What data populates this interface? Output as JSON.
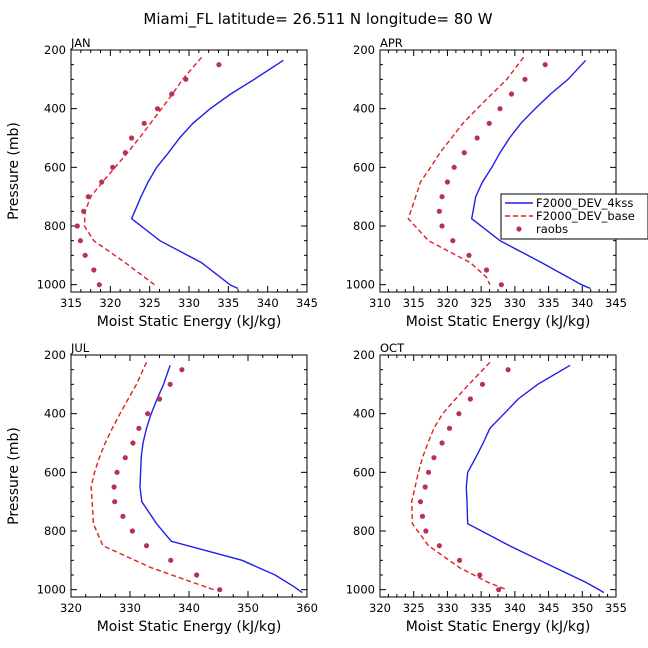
{
  "figure": {
    "title": "Miami_FL  latitude= 26.511 N longitude= 80 W"
  },
  "colors": {
    "blue": "#1f1fe6",
    "red": "#e0201c",
    "dots": "#b8315c",
    "axis": "#000000"
  },
  "chart_data": [
    {
      "type": "line",
      "panel": "JAN",
      "xlabel": "Moist Static Energy (kJ/kg)",
      "ylabel": "Pressure (mb)",
      "xlim": [
        315,
        345
      ],
      "xticks": [
        315,
        320,
        325,
        330,
        335,
        340,
        345
      ],
      "ylim": [
        200,
        1025
      ],
      "yticks": [
        200,
        400,
        600,
        800,
        1000
      ],
      "y_inverted": true,
      "series": [
        {
          "name": "F2000_DEV_4kss",
          "style": "solid",
          "color": "blue",
          "p": [
            235,
            300,
            350,
            400,
            450,
            500,
            550,
            600,
            650,
            700,
            775,
            850,
            925,
            1000,
            1013
          ],
          "x": [
            342,
            338.3,
            335.3,
            332.7,
            330.5,
            328.8,
            327.4,
            325.9,
            324.8,
            323.9,
            322.7,
            326.3,
            331.6,
            335.2,
            336.2
          ]
        },
        {
          "name": "F2000_DEV_base",
          "style": "dashed",
          "color": "red",
          "p": [
            225,
            300,
            350,
            400,
            450,
            500,
            550,
            600,
            650,
            700,
            750,
            800,
            850,
            925,
            1000
          ],
          "x": [
            331.6,
            329.2,
            327.9,
            326.5,
            325.1,
            323.7,
            322.2,
            320.6,
            319.0,
            317.5,
            316.8,
            316.7,
            317.9,
            321.9,
            325.6
          ]
        },
        {
          "name": "raobs",
          "style": "dots",
          "color": "dots",
          "p": [
            250,
            300,
            350,
            400,
            450,
            500,
            550,
            600,
            650,
            700,
            750,
            800,
            850,
            900,
            950,
            1000
          ],
          "x": [
            333.8,
            329.6,
            327.8,
            326.0,
            324.3,
            322.7,
            321.9,
            320.3,
            318.9,
            317.2,
            316.6,
            315.8,
            316.2,
            316.8,
            317.9,
            318.6
          ]
        }
      ]
    },
    {
      "type": "line",
      "panel": "APR",
      "xlabel": "Moist Static Energy (kJ/kg)",
      "ylabel": "",
      "xlim": [
        310,
        345
      ],
      "xticks": [
        310,
        315,
        320,
        325,
        330,
        335,
        340,
        345
      ],
      "ylim": [
        200,
        1025
      ],
      "yticks": [
        200,
        400,
        600,
        800,
        1000
      ],
      "y_inverted": true,
      "series": [
        {
          "name": "F2000_DEV_4kss",
          "style": "solid",
          "color": "blue",
          "p": [
            235,
            300,
            350,
            400,
            450,
            500,
            550,
            600,
            650,
            700,
            775,
            850,
            925,
            1000,
            1013
          ],
          "x": [
            340.5,
            337.9,
            335.3,
            333.0,
            330.9,
            329.2,
            327.8,
            326.6,
            325.2,
            324.2,
            323.6,
            327.8,
            334.0,
            339.9,
            341.2
          ]
        },
        {
          "name": "F2000_DEV_base",
          "style": "dashed",
          "color": "red",
          "p": [
            225,
            300,
            350,
            400,
            450,
            500,
            550,
            600,
            650,
            700,
            775,
            850,
            925,
            975,
            1000
          ],
          "x": [
            331.3,
            328.8,
            326.6,
            324.4,
            322.3,
            320.6,
            318.9,
            317.5,
            316.0,
            315.3,
            314.2,
            317.2,
            323.4,
            325.8,
            326.3
          ]
        },
        {
          "name": "raobs",
          "style": "dots",
          "color": "dots",
          "p": [
            250,
            300,
            350,
            400,
            450,
            500,
            550,
            600,
            650,
            700,
            750,
            800,
            850,
            900,
            950,
            1000
          ],
          "x": [
            334.5,
            331.5,
            329.5,
            327.8,
            326.2,
            324.4,
            322.5,
            321.0,
            320.0,
            319.2,
            318.8,
            319.2,
            320.8,
            323.2,
            325.8,
            328.0
          ]
        }
      ]
    },
    {
      "type": "line",
      "panel": "JUL",
      "xlabel": "Moist Static Energy (kJ/kg)",
      "ylabel": "Pressure (mb)",
      "xlim": [
        320,
        360
      ],
      "xticks": [
        320,
        330,
        340,
        350,
        360
      ],
      "ylim": [
        200,
        1025
      ],
      "yticks": [
        200,
        400,
        600,
        800,
        1000
      ],
      "y_inverted": true,
      "series": [
        {
          "name": "F2000_DEV_4kss",
          "style": "solid",
          "color": "blue",
          "p": [
            235,
            300,
            350,
            400,
            450,
            500,
            550,
            600,
            650,
            700,
            775,
            835,
            900,
            950,
            990,
            1010
          ],
          "x": [
            336.8,
            335.7,
            334.6,
            333.6,
            332.8,
            332.2,
            331.9,
            331.8,
            331.7,
            332.0,
            334.5,
            337.0,
            349.0,
            354.6,
            357.8,
            359.2
          ]
        },
        {
          "name": "F2000_DEV_base",
          "style": "dashed",
          "color": "red",
          "p": [
            225,
            300,
            350,
            400,
            450,
            500,
            550,
            600,
            650,
            700,
            775,
            850,
            925,
            975,
            1000
          ],
          "x": [
            332.8,
            331.1,
            329.7,
            328.3,
            327.0,
            325.8,
            324.8,
            324.0,
            323.4,
            323.6,
            323.8,
            325.4,
            333.6,
            340.6,
            344.2
          ]
        },
        {
          "name": "raobs",
          "style": "dots",
          "color": "dots",
          "p": [
            250,
            300,
            350,
            400,
            450,
            500,
            550,
            600,
            650,
            700,
            750,
            800,
            850,
            900,
            950,
            1000
          ],
          "x": [
            338.8,
            336.8,
            335.0,
            333.0,
            331.5,
            330.5,
            329.2,
            327.8,
            327.3,
            327.4,
            328.8,
            330.4,
            332.8,
            336.9,
            341.3,
            345.2
          ]
        }
      ]
    },
    {
      "type": "line",
      "panel": "OCT",
      "xlabel": "Moist Static Energy (kJ/kg)",
      "ylabel": "",
      "xlim": [
        320,
        355
      ],
      "xticks": [
        320,
        325,
        330,
        335,
        340,
        345,
        350,
        355
      ],
      "ylim": [
        200,
        1025
      ],
      "yticks": [
        200,
        400,
        600,
        800,
        1000
      ],
      "y_inverted": true,
      "series": [
        {
          "name": "F2000_DEV_4kss",
          "style": "solid",
          "color": "blue",
          "p": [
            235,
            300,
            350,
            400,
            450,
            500,
            550,
            600,
            650,
            700,
            775,
            850,
            925,
            975,
            1000,
            1010
          ],
          "x": [
            348.2,
            343.4,
            340.5,
            338.4,
            336.3,
            335.3,
            334.2,
            333.0,
            332.8,
            332.9,
            333.0,
            339.2,
            346.0,
            350.5,
            352.5,
            353.2
          ]
        },
        {
          "name": "F2000_DEV_base",
          "style": "dashed",
          "color": "red",
          "p": [
            225,
            300,
            350,
            400,
            450,
            500,
            550,
            600,
            650,
            700,
            775,
            850,
            925,
            975,
            1000
          ],
          "x": [
            336.3,
            333.2,
            331.2,
            329.3,
            328.0,
            327.1,
            326.3,
            325.7,
            325.2,
            324.7,
            324.8,
            327.2,
            331.8,
            336.0,
            338.8
          ]
        },
        {
          "name": "raobs",
          "style": "dots",
          "color": "dots",
          "p": [
            250,
            300,
            350,
            400,
            450,
            500,
            550,
            600,
            650,
            700,
            750,
            800,
            850,
            900,
            950,
            1000
          ],
          "x": [
            339.0,
            335.2,
            333.4,
            331.7,
            330.3,
            329.2,
            328.0,
            327.2,
            326.7,
            326.0,
            326.3,
            326.8,
            328.8,
            331.8,
            334.8,
            337.6
          ]
        }
      ]
    }
  ],
  "legend": {
    "panel": "APR",
    "placement": "right",
    "entries": [
      {
        "label": "F2000_DEV_4kss",
        "style": "solid",
        "color": "blue"
      },
      {
        "label": "F2000_DEV_base",
        "style": "dashed",
        "color": "red"
      },
      {
        "label": "raobs",
        "style": "dots",
        "color": "dots"
      }
    ]
  }
}
